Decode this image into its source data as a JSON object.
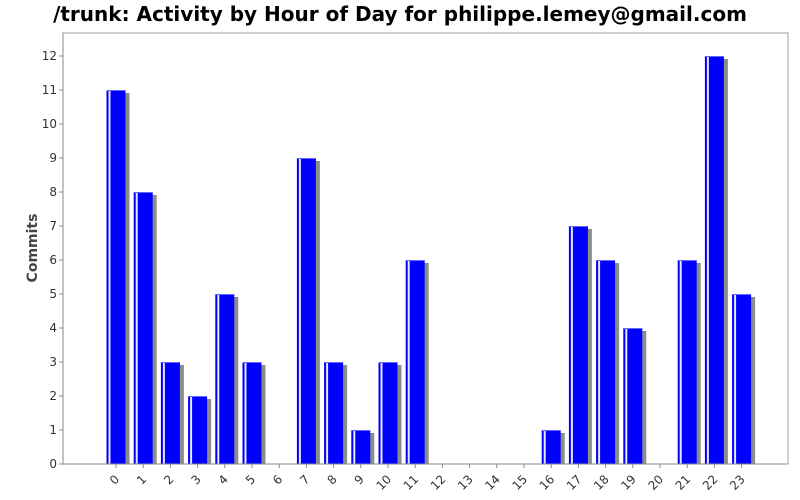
{
  "chart_data": {
    "type": "bar",
    "title": "/trunk: Activity by Hour of Day for philippe.lemey@gmail.com",
    "xlabel": "",
    "ylabel": "Commits",
    "categories": [
      "0",
      "1",
      "2",
      "3",
      "4",
      "5",
      "6",
      "7",
      "8",
      "9",
      "10",
      "11",
      "12",
      "13",
      "14",
      "15",
      "16",
      "17",
      "18",
      "19",
      "20",
      "21",
      "22",
      "23"
    ],
    "values": [
      11,
      8,
      3,
      2,
      5,
      3,
      0,
      9,
      3,
      1,
      3,
      6,
      0,
      0,
      0,
      0,
      1,
      7,
      6,
      4,
      0,
      6,
      12,
      5
    ],
    "ylim": [
      0,
      12.6
    ],
    "yticks": [
      0,
      1,
      2,
      3,
      4,
      5,
      6,
      7,
      8,
      9,
      10,
      11,
      12
    ],
    "grid": false,
    "legend": "none",
    "colors": {
      "bar": "#0000ff",
      "bar_highlight": "#e8e8ff",
      "shadow": "#8c8c8c",
      "axis": "#888888"
    }
  }
}
